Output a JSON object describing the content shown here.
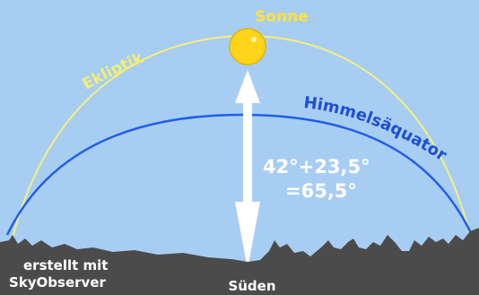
{
  "labels": {
    "sun": "Sonne",
    "ecliptic": "Ekliptik",
    "celestial_equator": "Himmelsäquator",
    "equation_line1": "42°+23,5°",
    "equation_line2": "=65,5°",
    "south": "Süden",
    "credit_line1": "erstellt mit",
    "credit_line2": "SkyObserver"
  },
  "values": {
    "latitude_complement_deg": 42,
    "axial_tilt_deg": 23.5,
    "sun_altitude_deg": 65.5
  },
  "colors": {
    "sky": "#a8cdf3",
    "ecliptic": "#f3f07e",
    "equator": "#1f5fe6",
    "sun": "#ffd41a",
    "sun_edge": "#e0b400",
    "sun_label": "#ffe23a",
    "ecliptic_label": "#f2ee74",
    "equator_label": "#1d4fd1",
    "arrow": "#ffffff",
    "ground": "#4b4b4b",
    "text_light": "#ffffff"
  },
  "icons": {
    "sun": "sun-disc-icon",
    "arrow": "double-headed-vertical-arrow"
  }
}
